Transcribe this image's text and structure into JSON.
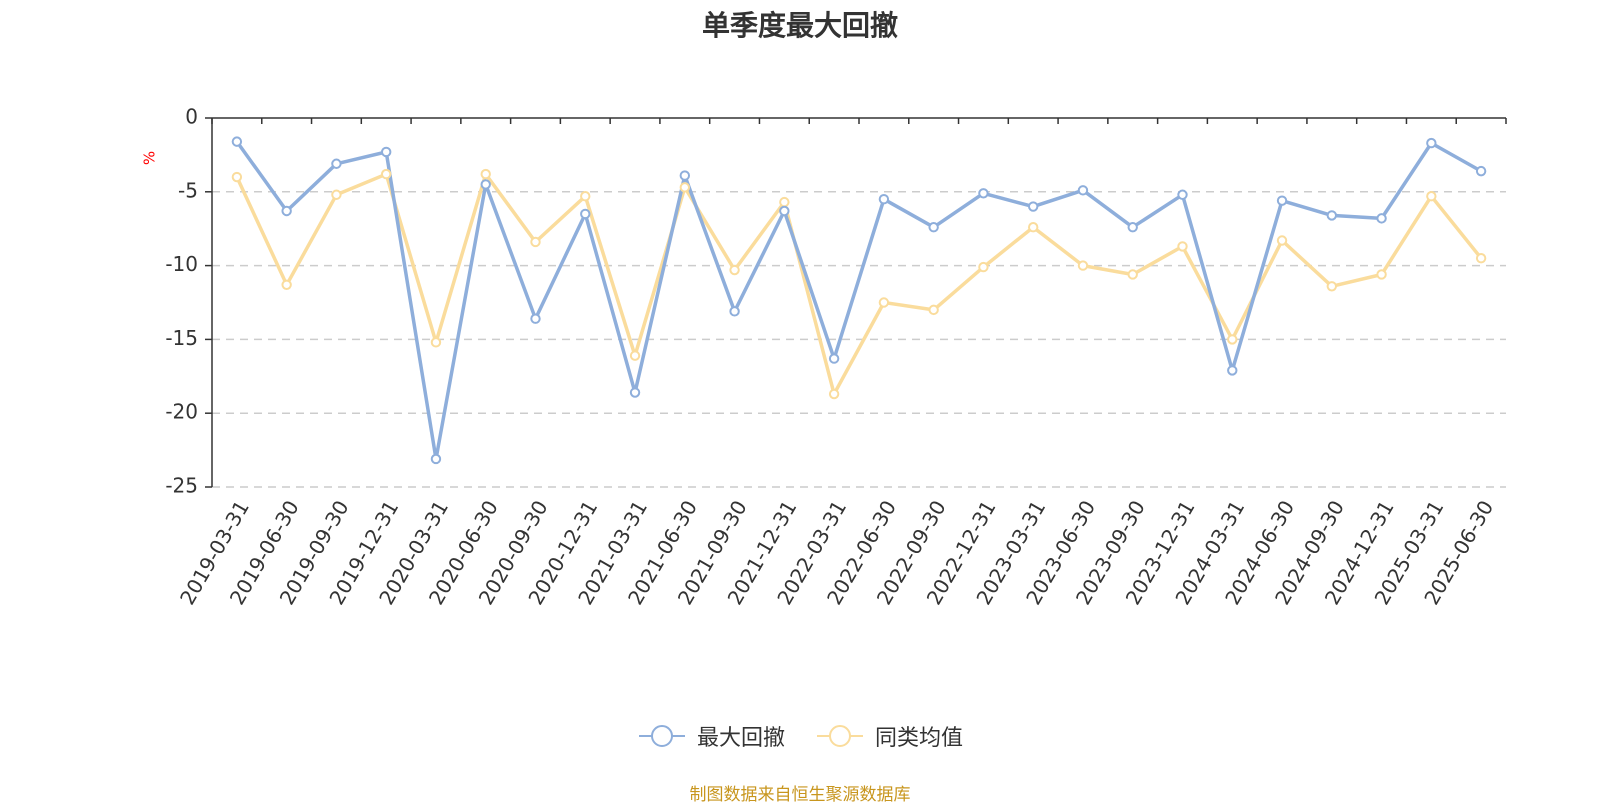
{
  "colors": {
    "series_1": "#8eaedb",
    "series_2": "#fadc9c",
    "axis": "#333333",
    "grid": "#cccccc",
    "unit": "#ff0000",
    "source": "#c8961e"
  },
  "chart_data": {
    "type": "line",
    "title": "单季度最大回撤",
    "xlabel": "",
    "ylabel": "%",
    "ylim": [
      -25,
      0
    ],
    "yticks": [
      "0",
      "-5",
      "-10",
      "-15",
      "-20",
      "-25"
    ],
    "grid": true,
    "legend_position": "bottom-center",
    "categories": [
      "2019-03-31",
      "2019-06-30",
      "2019-09-30",
      "2019-12-31",
      "2020-03-31",
      "2020-06-30",
      "2020-09-30",
      "2020-12-31",
      "2021-03-31",
      "2021-06-30",
      "2021-09-30",
      "2021-12-31",
      "2022-03-31",
      "2022-06-30",
      "2022-09-30",
      "2022-12-31",
      "2023-03-31",
      "2023-06-30",
      "2023-09-30",
      "2023-12-31",
      "2024-03-31",
      "2024-06-30",
      "2024-09-30",
      "2024-12-31",
      "2025-03-31",
      "2025-06-30"
    ],
    "series": [
      {
        "name": "最大回撤",
        "values": [
          -1.6,
          -6.3,
          -3.1,
          -2.3,
          -23.1,
          -4.5,
          -13.6,
          -6.5,
          -18.6,
          -3.9,
          -13.1,
          -6.3,
          -16.3,
          -5.5,
          -7.4,
          -5.1,
          -6.0,
          -4.9,
          -7.4,
          -5.2,
          -17.1,
          -5.6,
          -6.6,
          -6.8,
          -1.7,
          -3.6
        ]
      },
      {
        "name": "同类均值",
        "values": [
          -4.0,
          -11.3,
          -5.2,
          -3.8,
          -15.2,
          -3.8,
          -8.4,
          -5.3,
          -16.1,
          -4.7,
          -10.3,
          -5.7,
          -18.7,
          -12.5,
          -13.0,
          -10.1,
          -7.4,
          -10.0,
          -10.6,
          -8.7,
          -15.0,
          -8.3,
          -11.4,
          -10.6,
          -5.3,
          -9.5
        ]
      }
    ]
  },
  "legend": {
    "items": [
      "最大回撤",
      "同类均值"
    ]
  },
  "source_note": "制图数据来自恒生聚源数据库"
}
